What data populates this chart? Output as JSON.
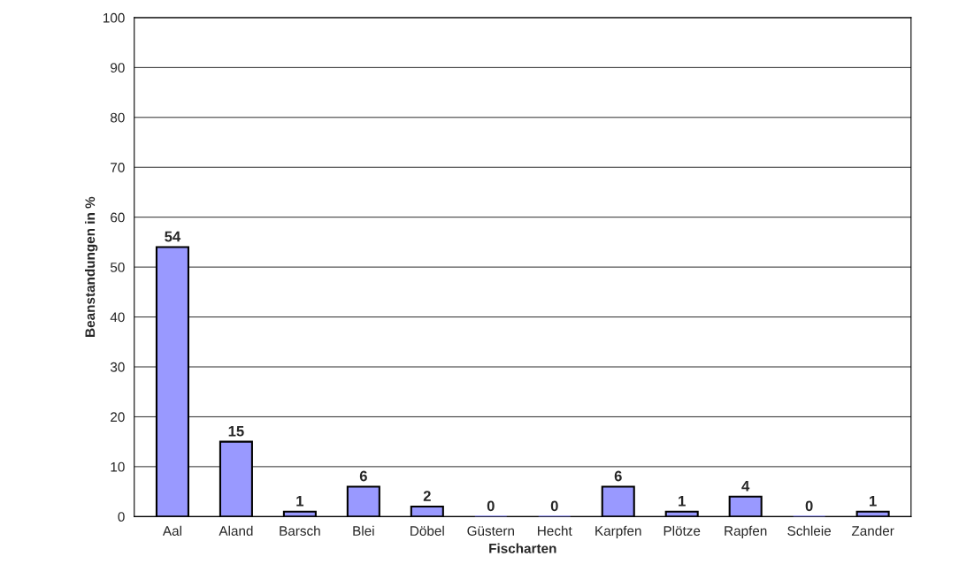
{
  "chart_data": {
    "type": "bar",
    "xlabel": "Fischarten",
    "ylabel": "Beanstandungen in %",
    "categories": [
      "Aal",
      "Aland",
      "Barsch",
      "Blei",
      "Döbel",
      "Güstern",
      "Hecht",
      "Karpfen",
      "Plötze",
      "Rapfen",
      "Schleie",
      "Zander"
    ],
    "values": [
      54,
      15,
      1,
      6,
      2,
      0,
      0,
      6,
      1,
      4,
      0,
      1
    ],
    "color": "#9999ff",
    "ylim": [
      0,
      100
    ],
    "yticks": [
      0,
      10,
      20,
      30,
      40,
      50,
      60,
      70,
      80,
      90,
      100
    ],
    "grid": "y",
    "data_labels": true
  }
}
